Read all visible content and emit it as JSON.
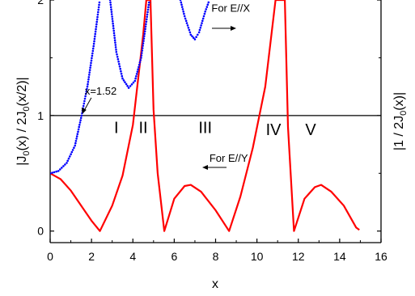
{
  "chart_data": {
    "type": "line",
    "xlabel": "x",
    "ylabel_left": "|J0(x) / 2J0(x/2)|",
    "ylabel_left_parts": {
      "pre": "|J",
      "sub1": "0",
      "mid": "(x) / 2J",
      "sub2": "0",
      "post": "(x/2)|"
    },
    "ylabel_right_parts": {
      "pre": "|1 / 2J",
      "sub": "0",
      "post": "(x)|"
    },
    "xlim": [
      0,
      16
    ],
    "ylim": [
      -0.1,
      2.0
    ],
    "xticks": [
      0,
      2,
      4,
      6,
      8,
      10,
      12,
      14,
      16
    ],
    "yticks": [
      0,
      1,
      2
    ],
    "grid": false,
    "reference_line": {
      "y": 1
    },
    "series": [
      {
        "color": "#ff0000",
        "style": "solid line",
        "sampled_points": [
          [
            0.0,
            0.5
          ],
          [
            0.5,
            0.45
          ],
          [
            1.0,
            0.35
          ],
          [
            1.5,
            0.22
          ],
          [
            2.0,
            0.09
          ],
          [
            2.405,
            0.0
          ],
          [
            3.0,
            0.22
          ],
          [
            3.5,
            0.48
          ],
          [
            4.0,
            0.92
          ],
          [
            4.5,
            1.7
          ],
          [
            4.65,
            2.0
          ],
          [
            4.85,
            2.0
          ],
          [
            5.0,
            1.05
          ],
          [
            5.2,
            0.5
          ],
          [
            5.52,
            0.0
          ],
          [
            6.0,
            0.28
          ],
          [
            6.5,
            0.39
          ],
          [
            6.8,
            0.4
          ],
          [
            7.3,
            0.34
          ],
          [
            8.0,
            0.18
          ],
          [
            8.654,
            0.0
          ],
          [
            9.2,
            0.3
          ],
          [
            9.8,
            0.72
          ],
          [
            10.4,
            1.25
          ],
          [
            10.9,
            2.0
          ],
          [
            11.35,
            2.0
          ],
          [
            11.5,
            0.9
          ],
          [
            11.792,
            0.0
          ],
          [
            12.3,
            0.28
          ],
          [
            12.8,
            0.38
          ],
          [
            13.1,
            0.4
          ],
          [
            13.6,
            0.34
          ],
          [
            14.2,
            0.22
          ],
          [
            14.8,
            0.03
          ],
          [
            14.95,
            0.01
          ]
        ]
      },
      {
        "color": "#0000ff",
        "style": "dotted",
        "sampled_points": [
          [
            0.0,
            0.5
          ],
          [
            0.4,
            0.52
          ],
          [
            0.8,
            0.59
          ],
          [
            1.2,
            0.74
          ],
          [
            1.52,
            1.0
          ],
          [
            1.8,
            1.25
          ],
          [
            2.1,
            1.6
          ],
          [
            2.4,
            2.0
          ],
          [
            2.9,
            2.0
          ],
          [
            3.2,
            1.55
          ],
          [
            3.5,
            1.32
          ],
          [
            3.8,
            1.24
          ],
          [
            4.1,
            1.3
          ],
          [
            4.4,
            1.5
          ],
          [
            4.6,
            1.75
          ],
          [
            4.8,
            2.0
          ],
          [
            6.3,
            2.0
          ],
          [
            6.5,
            1.86
          ],
          [
            6.8,
            1.7
          ],
          [
            7.0,
            1.66
          ],
          [
            7.2,
            1.72
          ],
          [
            7.5,
            1.9
          ],
          [
            7.7,
            2.0
          ]
        ]
      }
    ],
    "annotations": {
      "point_label": "x=1.52",
      "point": [
        1.52,
        1.0
      ],
      "region_labels": [
        {
          "text": "I",
          "x": 3.2,
          "y": 0.85
        },
        {
          "text": "II",
          "x": 4.5,
          "y": 0.85
        },
        {
          "text": "III",
          "x": 7.5,
          "y": 0.85
        },
        {
          "text": "IV",
          "x": 10.8,
          "y": 0.83
        },
        {
          "text": "V",
          "x": 12.6,
          "y": 0.83
        }
      ],
      "legend_texts": [
        {
          "text": "For E//X",
          "x": 7.8,
          "y": 1.9
        },
        {
          "text": "For E//Y",
          "x": 7.7,
          "y": 0.6
        }
      ]
    }
  }
}
